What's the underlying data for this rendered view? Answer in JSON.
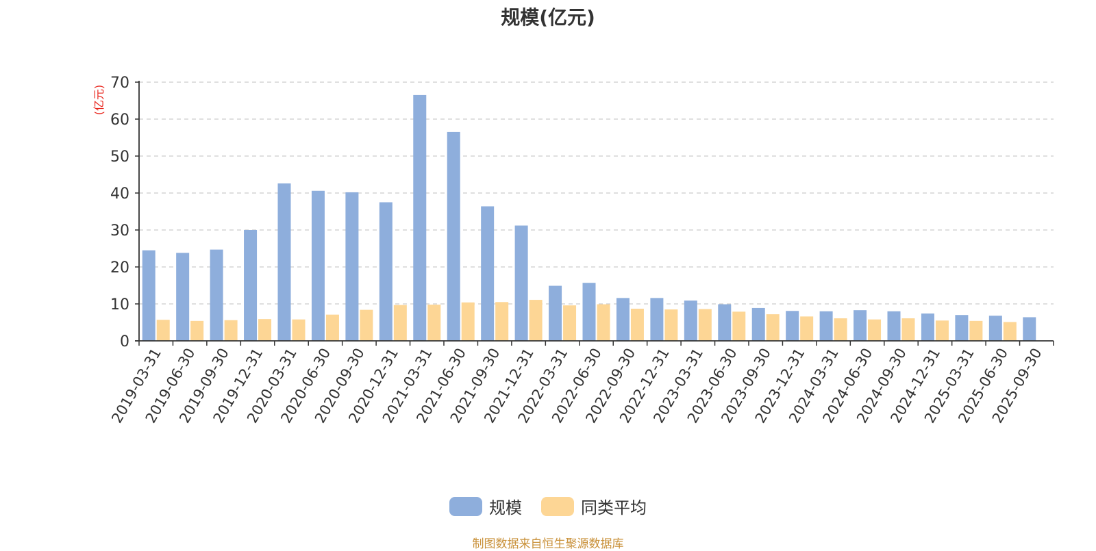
{
  "chart_data": {
    "type": "bar",
    "title": "规模(亿元)",
    "ylabel": "(亿元)",
    "xlabel": "",
    "ylim": [
      0,
      70
    ],
    "yticks": [
      0,
      10,
      20,
      30,
      40,
      50,
      60,
      70
    ],
    "grid": "horizontal-dashed",
    "legend_position": "bottom-center",
    "categories": [
      "2019-03-31",
      "2019-06-30",
      "2019-09-30",
      "2019-12-31",
      "2020-03-31",
      "2020-06-30",
      "2020-09-30",
      "2020-12-31",
      "2021-03-31",
      "2021-06-30",
      "2021-09-30",
      "2021-12-31",
      "2022-03-31",
      "2022-06-30",
      "2022-09-30",
      "2022-12-31",
      "2023-03-31",
      "2023-06-30",
      "2023-09-30",
      "2023-12-31",
      "2024-03-31",
      "2024-06-30",
      "2024-09-30",
      "2024-12-31",
      "2025-03-31",
      "2025-06-30",
      "2025-09-30"
    ],
    "series": [
      {
        "name": "规模",
        "color": "#8eaedc",
        "values": [
          24.5,
          23.8,
          24.7,
          30.0,
          42.6,
          40.6,
          40.2,
          37.5,
          66.5,
          56.5,
          36.4,
          31.2,
          14.9,
          15.7,
          11.6,
          11.6,
          10.9,
          9.9,
          8.9,
          8.1,
          8.0,
          8.3,
          8.0,
          7.4,
          7.0,
          6.8,
          6.4
        ]
      },
      {
        "name": "同类平均",
        "color": "#fdd695",
        "values": [
          5.7,
          5.4,
          5.6,
          5.9,
          5.8,
          7.1,
          8.4,
          9.7,
          9.8,
          10.4,
          10.5,
          11.1,
          9.6,
          9.9,
          8.7,
          8.5,
          8.6,
          7.9,
          7.2,
          6.6,
          6.1,
          5.8,
          6.1,
          5.5,
          5.4,
          5.1,
          null
        ]
      }
    ]
  },
  "source_note": "制图数据来自恒生聚源数据库",
  "axis_color": "#333333",
  "grid_color": "#cccccc",
  "ylabel_color": "#e8231a"
}
